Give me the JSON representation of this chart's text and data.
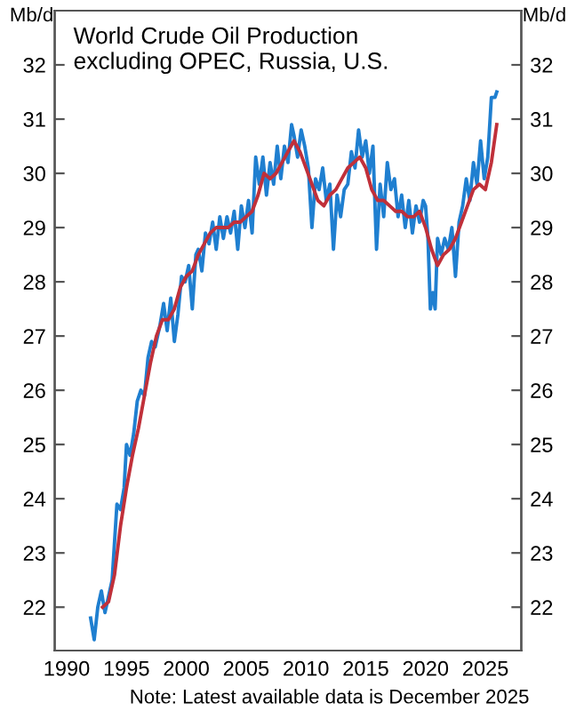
{
  "chart_data": {
    "type": "line",
    "title": "World Crude Oil Production\nexcluding OPEC, Russia, U.S.",
    "ylabel": "Mb/d",
    "y2label": "Mb/d",
    "annotations": [
      "Note: Latest available data is December 2025"
    ],
    "xlim": [
      1989,
      2028
    ],
    "xticks": [
      1990,
      1995,
      2000,
      2005,
      2010,
      2015,
      2020,
      2025
    ],
    "ylim": [
      21.2,
      33.0
    ],
    "yticks": [
      22,
      23,
      24,
      25,
      26,
      27,
      28,
      29,
      30,
      31,
      32
    ],
    "y2lim": [
      21.2,
      33.0
    ],
    "y2ticks": [
      22,
      23,
      24,
      25,
      26,
      27,
      28,
      29,
      30,
      31,
      32
    ],
    "grid": false,
    "legend": false,
    "line_style": "solid",
    "marker": "none",
    "series": [
      {
        "color": "#1f7fd0",
        "x": [
          1992.0,
          1992.3,
          1992.6,
          1992.9,
          1993.2,
          1993.5,
          1993.8,
          1994.0,
          1994.2,
          1994.5,
          1994.8,
          1995.0,
          1995.3,
          1995.6,
          1995.9,
          1996.2,
          1996.5,
          1996.8,
          1997.1,
          1997.4,
          1997.8,
          1998.1,
          1998.4,
          1998.7,
          1999.0,
          1999.3,
          1999.6,
          1999.9,
          2000.2,
          2000.5,
          2000.8,
          2001.0,
          2001.3,
          2001.6,
          2001.9,
          2002.2,
          2002.5,
          2002.8,
          2003.1,
          2003.4,
          2003.7,
          2004.0,
          2004.3,
          2004.6,
          2004.9,
          2005.2,
          2005.5,
          2005.8,
          2006.1,
          2006.4,
          2006.7,
          2007.0,
          2007.3,
          2007.6,
          2007.9,
          2008.2,
          2008.5,
          2008.8,
          2009.0,
          2009.3,
          2009.6,
          2009.9,
          2010.2,
          2010.5,
          2010.8,
          2011.1,
          2011.4,
          2011.7,
          2012.0,
          2012.3,
          2012.6,
          2012.9,
          2013.2,
          2013.5,
          2013.8,
          2014.1,
          2014.4,
          2014.7,
          2015.0,
          2015.3,
          2015.6,
          2015.9,
          2016.2,
          2016.5,
          2016.8,
          2017.1,
          2017.4,
          2017.7,
          2018.0,
          2018.3,
          2018.6,
          2018.9,
          2019.2,
          2019.5,
          2019.8,
          2020.0,
          2020.2,
          2020.4,
          2020.6,
          2020.8,
          2021.0,
          2021.3,
          2021.6,
          2021.9,
          2022.2,
          2022.5,
          2022.8,
          2023.1,
          2023.4,
          2023.7,
          2024.0,
          2024.3,
          2024.6,
          2024.9,
          2025.2,
          2025.5,
          2025.8,
          2025.95
        ],
        "values": [
          21.8,
          21.4,
          22.0,
          22.3,
          21.9,
          22.2,
          22.5,
          23.2,
          23.9,
          23.8,
          24.2,
          25.0,
          24.8,
          25.2,
          25.8,
          26.0,
          25.9,
          26.6,
          26.9,
          26.8,
          27.2,
          27.6,
          27.1,
          27.7,
          26.9,
          27.4,
          28.1,
          28.0,
          28.3,
          27.5,
          28.5,
          28.6,
          28.2,
          28.9,
          28.7,
          29.1,
          28.6,
          29.2,
          28.8,
          29.2,
          28.9,
          29.3,
          28.6,
          29.4,
          29.0,
          29.5,
          28.9,
          30.3,
          29.8,
          30.3,
          29.6,
          30.2,
          29.8,
          30.5,
          29.9,
          30.5,
          30.2,
          30.9,
          30.7,
          30.3,
          30.8,
          30.5,
          30.1,
          29.0,
          29.9,
          29.7,
          30.1,
          29.5,
          29.8,
          28.6,
          29.6,
          29.2,
          29.7,
          29.8,
          30.4,
          30.1,
          30.8,
          30.3,
          30.6,
          30.0,
          30.5,
          28.6,
          29.8,
          29.2,
          30.2,
          29.7,
          29.9,
          29.2,
          29.6,
          29.0,
          29.5,
          28.9,
          29.4,
          29.1,
          29.5,
          29.4,
          28.8,
          27.5,
          27.8,
          27.5,
          28.8,
          28.5,
          28.8,
          28.6,
          29.0,
          28.1,
          29.1,
          29.4,
          29.9,
          29.5,
          30.2,
          29.8,
          30.6,
          29.9,
          30.3,
          31.4,
          31.4,
          31.5
        ]
      },
      {
        "color": "#c0303a",
        "x": [
          1993.0,
          1993.5,
          1994.0,
          1994.5,
          1995.0,
          1995.5,
          1996.0,
          1996.5,
          1997.0,
          1997.5,
          1998.0,
          1998.5,
          1999.0,
          1999.5,
          2000.0,
          2000.5,
          2001.0,
          2001.5,
          2002.0,
          2002.5,
          2003.0,
          2003.5,
          2004.0,
          2004.5,
          2005.0,
          2005.5,
          2006.0,
          2006.5,
          2007.0,
          2007.5,
          2008.0,
          2008.5,
          2009.0,
          2009.5,
          2010.0,
          2010.5,
          2011.0,
          2011.5,
          2012.0,
          2012.5,
          2013.0,
          2013.5,
          2014.0,
          2014.5,
          2015.0,
          2015.5,
          2016.0,
          2016.5,
          2017.0,
          2017.5,
          2018.0,
          2018.5,
          2019.0,
          2019.5,
          2020.0,
          2020.5,
          2021.0,
          2021.5,
          2022.0,
          2022.5,
          2023.0,
          2023.5,
          2024.0,
          2024.5,
          2025.0,
          2025.5,
          2025.95
        ],
        "values": [
          22.0,
          22.1,
          22.6,
          23.5,
          24.2,
          24.8,
          25.3,
          25.9,
          26.5,
          27.0,
          27.3,
          27.3,
          27.5,
          27.9,
          28.1,
          28.2,
          28.5,
          28.7,
          28.9,
          29.0,
          29.0,
          29.0,
          29.1,
          29.1,
          29.2,
          29.3,
          29.6,
          30.0,
          29.9,
          30.0,
          30.2,
          30.4,
          30.6,
          30.4,
          30.1,
          29.8,
          29.5,
          29.4,
          29.6,
          29.7,
          29.9,
          30.1,
          30.2,
          30.3,
          30.1,
          29.7,
          29.5,
          29.5,
          29.4,
          29.3,
          29.3,
          29.2,
          29.2,
          29.3,
          29.0,
          28.6,
          28.3,
          28.5,
          28.6,
          28.8,
          29.1,
          29.4,
          29.7,
          29.8,
          29.7,
          30.2,
          30.9
        ]
      }
    ]
  }
}
